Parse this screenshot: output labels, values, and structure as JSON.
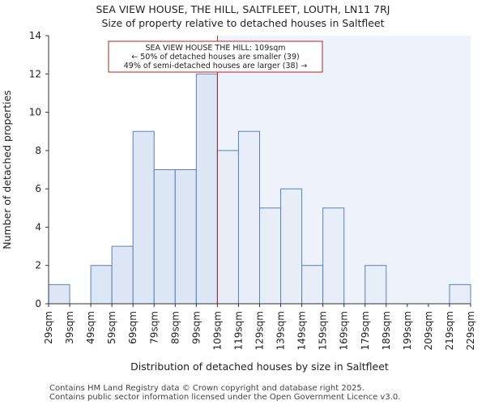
{
  "title_line1": "SEA VIEW HOUSE, THE HILL, SALTFLEET, LOUTH, LN11 7RJ",
  "title_line2": "Size of property relative to detached houses in Saltfleet",
  "footer_line1": "Contains HM Land Registry data © Crown copyright and database right 2025.",
  "footer_line2": "Contains public sector information licensed under the Open Government Licence v3.0.",
  "colors": {
    "bar_fill": "#dce6f5",
    "bar_highlight_fill": "#e8eef8",
    "bar_stroke": "#5b7fc0",
    "marker": "#b22222",
    "highlight_bg": "#eef3fb"
  },
  "chart_data": {
    "type": "bar",
    "xlabel": "Distribution of detached houses by size in Saltfleet",
    "ylabel": "Number of detached properties",
    "ylim": [
      0,
      14
    ],
    "yticks": [
      0,
      2,
      4,
      6,
      8,
      10,
      12,
      14
    ],
    "bin_edges": [
      29,
      39,
      49,
      59,
      69,
      79,
      89,
      99,
      109,
      119,
      129,
      139,
      149,
      159,
      169,
      179,
      189,
      199,
      209,
      219,
      229
    ],
    "tick_labels": [
      "29sqm",
      "39sqm",
      "49sqm",
      "59sqm",
      "69sqm",
      "79sqm",
      "89sqm",
      "99sqm",
      "109sqm",
      "119sqm",
      "129sqm",
      "139sqm",
      "149sqm",
      "159sqm",
      "169sqm",
      "179sqm",
      "189sqm",
      "199sqm",
      "209sqm",
      "219sqm",
      "229sqm"
    ],
    "values": [
      1,
      0,
      2,
      3,
      9,
      7,
      7,
      12,
      8,
      9,
      5,
      6,
      2,
      5,
      0,
      2,
      0,
      0,
      0,
      1
    ],
    "marker_value": 109,
    "annotation_lines": [
      "SEA VIEW HOUSE THE HILL: 109sqm",
      "← 50% of detached houses are smaller (39)",
      "49% of semi-detached houses are larger (38) →"
    ]
  }
}
